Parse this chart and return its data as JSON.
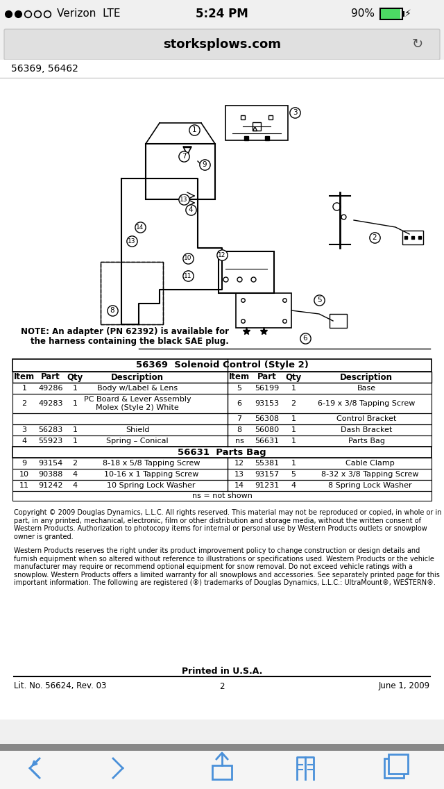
{
  "bg_color": "#f0f0f0",
  "white": "#ffffff",
  "black": "#000000",
  "status_bar": {
    "signal": "●●○○○",
    "carrier": "Verizon  LTE",
    "time": "5:24 PM",
    "battery": "90%",
    "bg": "#f0f0f0"
  },
  "url_bar": {
    "text": "storksplows.com",
    "bg": "#e0e0e0"
  },
  "page_header": "56369, 56462",
  "note_text": "NOTE: An adapter (PN 62392) is available for\nthe harness containing the black SAE plug.",
  "table_title1": "56369  Solenoid Control (Style 2)",
  "table_title2": "56631  Parts Bag",
  "table_headers": [
    "Item",
    "Part",
    "Qty",
    "Description",
    "Item",
    "Part",
    "Qty",
    "Description"
  ],
  "table_rows": [
    [
      "1",
      "49286",
      "1",
      "Body w/Label & Lens",
      "5",
      "56199",
      "1",
      "Base"
    ],
    [
      "2",
      "49283",
      "1",
      "PC Board & Lever Assembly\nMolex (Style 2) White",
      "6",
      "93153",
      "2",
      "6-19 x 3/8 Tapping Screw"
    ],
    [
      "",
      "",
      "",
      "",
      "7",
      "56308",
      "1",
      "Control Bracket"
    ],
    [
      "3",
      "56283",
      "1",
      "Shield",
      "8",
      "56080",
      "1",
      "Dash Bracket"
    ],
    [
      "4",
      "55923",
      "1",
      "Spring – Conical",
      "ns",
      "56631",
      "1",
      "Parts Bag"
    ]
  ],
  "parts_bag_rows": [
    [
      "9",
      "93154",
      "2",
      "8-18 x 5/8 Tapping Screw",
      "12",
      "55381",
      "1",
      "Cable Clamp"
    ],
    [
      "10",
      "90388",
      "4",
      "10-16 x 1 Tapping Screw",
      "13",
      "93157",
      "5",
      "8-32 x 3/8 Tapping Screw"
    ],
    [
      "11",
      "91242",
      "4",
      "10 Spring Lock Washer",
      "14",
      "91231",
      "4",
      "8 Spring Lock Washer"
    ]
  ],
  "ns_note": "ns = not shown",
  "copyright1": "Copyright © 2009 Douglas Dynamics, L.L.C. All rights reserved. This material may not be reproduced or copied, in whole or in part, in any printed, mechanical, electronic, film or other distribution and storage media, without the written consent of Western Products. Authorization to photocopy items for internal or personal use by Western Products outlets or snowplow owner is granted.",
  "copyright2": "Western Products reserves the right under its product improvement policy to change construction or design details and furnish equipment when so altered without reference to illustrations or specifications used. Western Products or the vehicle manufacturer may require or recommend optional equipment for snow removal. Do not exceed vehicle ratings with a snowplow. Western Products offers a limited warranty for all snowplows and accessories. See separately printed page for this important information. The following are registered (®) trademarks of Douglas Dynamics, L.L.C.: UltraMount®, WESTERN®.",
  "printed": "Printed in U.S.A.",
  "footer_left": "Lit. No. 56624, Rev. 03",
  "footer_center": "2",
  "footer_right": "June 1, 2009",
  "bottom_bar_color": "#888888",
  "nav_bar_color": "#f5f5f5",
  "blue_color": "#4a90d9"
}
